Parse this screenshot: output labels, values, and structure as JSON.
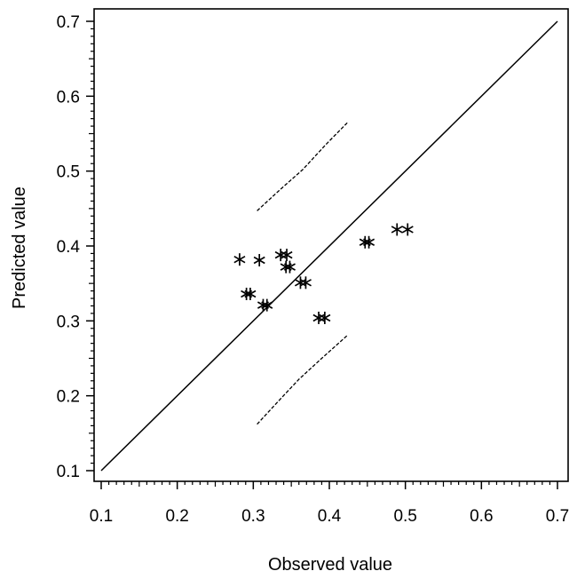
{
  "chart_data": {
    "type": "scatter",
    "title": "",
    "xlabel": "Observed value",
    "ylabel": "Predicted value",
    "xlim": [
      0.1,
      0.7
    ],
    "ylim": [
      0.1,
      0.7
    ],
    "xticks": [
      "0.1",
      "0.2",
      "0.3",
      "0.4",
      "0.5",
      "0.6",
      "0.7"
    ],
    "yticks": [
      "0.1",
      "0.2",
      "0.3",
      "0.4",
      "0.5",
      "0.6",
      "0.7"
    ],
    "marker": "asterisk",
    "points": [
      {
        "x": 0.282,
        "y": 0.382
      },
      {
        "x": 0.308,
        "y": 0.381
      },
      {
        "x": 0.291,
        "y": 0.336
      },
      {
        "x": 0.296,
        "y": 0.336
      },
      {
        "x": 0.313,
        "y": 0.321
      },
      {
        "x": 0.318,
        "y": 0.321
      },
      {
        "x": 0.336,
        "y": 0.388
      },
      {
        "x": 0.344,
        "y": 0.388
      },
      {
        "x": 0.343,
        "y": 0.372
      },
      {
        "x": 0.348,
        "y": 0.372
      },
      {
        "x": 0.362,
        "y": 0.351
      },
      {
        "x": 0.369,
        "y": 0.351
      },
      {
        "x": 0.386,
        "y": 0.304
      },
      {
        "x": 0.394,
        "y": 0.304
      },
      {
        "x": 0.447,
        "y": 0.405
      },
      {
        "x": 0.452,
        "y": 0.405
      },
      {
        "x": 0.489,
        "y": 0.422
      },
      {
        "x": 0.503,
        "y": 0.422
      }
    ],
    "identity_line": {
      "x": [
        0.1,
        0.7
      ],
      "y": [
        0.1,
        0.7
      ],
      "style": "solid"
    },
    "bands": [
      {
        "name": "upper",
        "style": "dashed",
        "x": [
          0.305,
          0.335,
          0.365,
          0.395,
          0.425
        ],
        "y": [
          0.447,
          0.475,
          0.502,
          0.535,
          0.566
        ]
      },
      {
        "name": "lower",
        "style": "dashed",
        "x": [
          0.305,
          0.335,
          0.36,
          0.39,
          0.423
        ],
        "y": [
          0.162,
          0.195,
          0.222,
          0.25,
          0.28
        ]
      }
    ]
  }
}
